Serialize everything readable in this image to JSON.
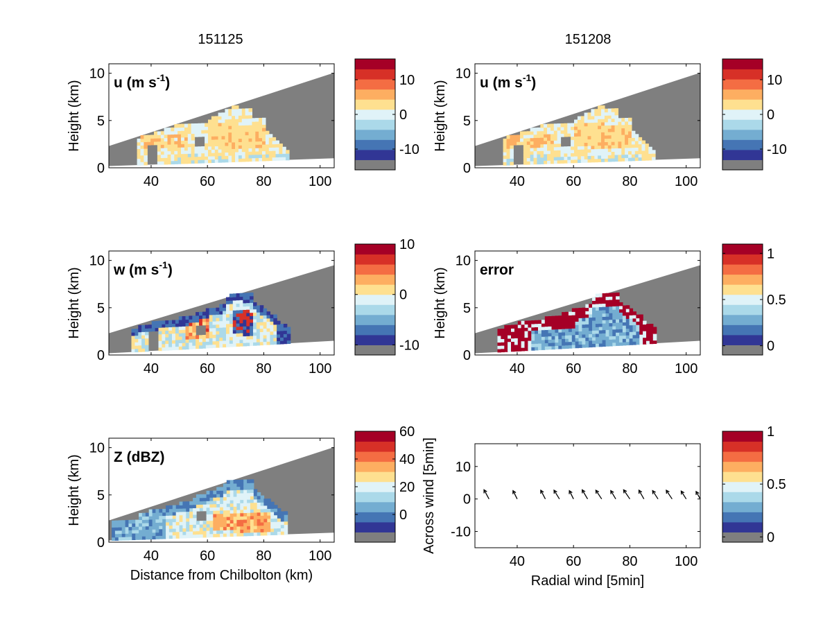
{
  "figure": {
    "column_titles": [
      "151125",
      "151208"
    ]
  },
  "colormap": [
    "#7f7f7f",
    "#313695",
    "#4575b4",
    "#74add1",
    "#abd9e9",
    "#e0f3f8",
    "#fee090",
    "#fdae61",
    "#f46d43",
    "#d73027",
    "#a50026"
  ],
  "chart_data": [
    {
      "id": "u_151125",
      "type": "heatmap",
      "label": "u (m s",
      "label_sup": "-1",
      "label_end": ")",
      "ylabel": "Height (km)",
      "xlabel": "",
      "xlim": [
        25,
        105
      ],
      "ylim": [
        0,
        11
      ],
      "xticks": [
        40,
        60,
        80,
        100
      ],
      "yticks": [
        0,
        5,
        10
      ],
      "colorbar": {
        "ticks": [
          {
            "v": 10,
            "t": "10"
          },
          {
            "v": 0,
            "t": "0"
          },
          {
            "v": -10,
            "t": "-10"
          }
        ],
        "range": [
          -16,
          16
        ]
      },
      "field": "u"
    },
    {
      "id": "u_151208",
      "type": "heatmap",
      "label": "u (m s",
      "label_sup": "-1",
      "label_end": ")",
      "ylabel": "Height (km)",
      "xlabel": "",
      "xlim": [
        25,
        105
      ],
      "ylim": [
        0,
        11
      ],
      "xticks": [
        40,
        60,
        80,
        100
      ],
      "yticks": [
        0,
        5,
        10
      ],
      "colorbar": {
        "ticks": [
          {
            "v": 10,
            "t": "10"
          },
          {
            "v": 0,
            "t": "0"
          },
          {
            "v": -10,
            "t": "-10"
          }
        ],
        "range": [
          -16,
          16
        ]
      },
      "field": "u"
    },
    {
      "id": "w_151125",
      "type": "heatmap",
      "label": "w (m s",
      "label_sup": "-1",
      "label_end": ")",
      "ylabel": "Height (km)",
      "xlabel": "",
      "xlim": [
        25,
        105
      ],
      "ylim": [
        0,
        11
      ],
      "xticks": [
        40,
        60,
        80,
        100
      ],
      "yticks": [
        0,
        5,
        10
      ],
      "colorbar": {
        "ticks": [
          {
            "v": 10,
            "t": "10"
          },
          {
            "v": 0,
            "t": "0"
          },
          {
            "v": -10,
            "t": "-10"
          }
        ],
        "range": [
          -12,
          10
        ]
      },
      "field": "w"
    },
    {
      "id": "error_151208",
      "type": "heatmap",
      "label": "error",
      "label_sup": "",
      "label_end": "",
      "ylabel": "Height (km)",
      "xlabel": "",
      "xlim": [
        25,
        105
      ],
      "ylim": [
        0,
        11
      ],
      "xticks": [
        40,
        60,
        80,
        100
      ],
      "yticks": [
        0,
        5,
        10
      ],
      "colorbar": {
        "ticks": [
          {
            "v": 1,
            "t": "1"
          },
          {
            "v": 0.5,
            "t": "0.5"
          },
          {
            "v": 0,
            "t": "0"
          }
        ],
        "range": [
          -0.1,
          1.1
        ]
      },
      "field": "error"
    },
    {
      "id": "z_151125",
      "type": "heatmap",
      "label": "Z (dBZ)",
      "label_sup": "",
      "label_end": "",
      "ylabel": "Height (km)",
      "xlabel": "Distance from Chilbolton (km)",
      "xlim": [
        25,
        105
      ],
      "ylim": [
        0,
        11
      ],
      "xticks": [
        40,
        60,
        80,
        100
      ],
      "yticks": [
        0,
        5,
        10
      ],
      "colorbar": {
        "ticks": [
          {
            "v": 60,
            "t": "60"
          },
          {
            "v": 40,
            "t": "40"
          },
          {
            "v": 20,
            "t": "20"
          },
          {
            "v": 0,
            "t": "0"
          }
        ],
        "range": [
          -20,
          60
        ]
      },
      "field": "z"
    },
    {
      "id": "wind_vectors",
      "type": "scatter",
      "label": "",
      "label_sup": "",
      "label_end": "",
      "ylabel": "Across wind [5min]",
      "xlabel": "Radial wind [5min]",
      "xlim": [
        25,
        105
      ],
      "ylim": [
        -15,
        17
      ],
      "xticks": [
        40,
        60,
        80,
        100
      ],
      "yticks": [
        -10,
        0,
        10
      ],
      "colorbar": {
        "ticks": [
          {
            "v": 1,
            "t": "1"
          },
          {
            "v": 0.5,
            "t": "0.5"
          },
          {
            "v": 0,
            "t": "0"
          }
        ],
        "range": [
          -0.05,
          1.0
        ]
      },
      "vectors": {
        "x": [
          30,
          40,
          50,
          55,
          60,
          65,
          70,
          75,
          80,
          85,
          90,
          95,
          100,
          105
        ],
        "y": [
          0,
          0,
          0,
          0,
          0,
          0,
          0,
          0,
          0,
          0,
          0,
          0,
          0,
          0
        ],
        "u": [
          -1.2,
          -1.0,
          -1.1,
          -1.3,
          -1.0,
          -1.3,
          -1.4,
          -1.2,
          -1.5,
          -1.2,
          -1.3,
          -1.4,
          -1.2,
          -1.0
        ],
        "v": [
          2.2,
          2.0,
          2.1,
          2.1,
          2.0,
          2.2,
          2.1,
          2.0,
          2.2,
          2.1,
          2.0,
          2.1,
          1.9,
          1.8
        ]
      }
    }
  ]
}
